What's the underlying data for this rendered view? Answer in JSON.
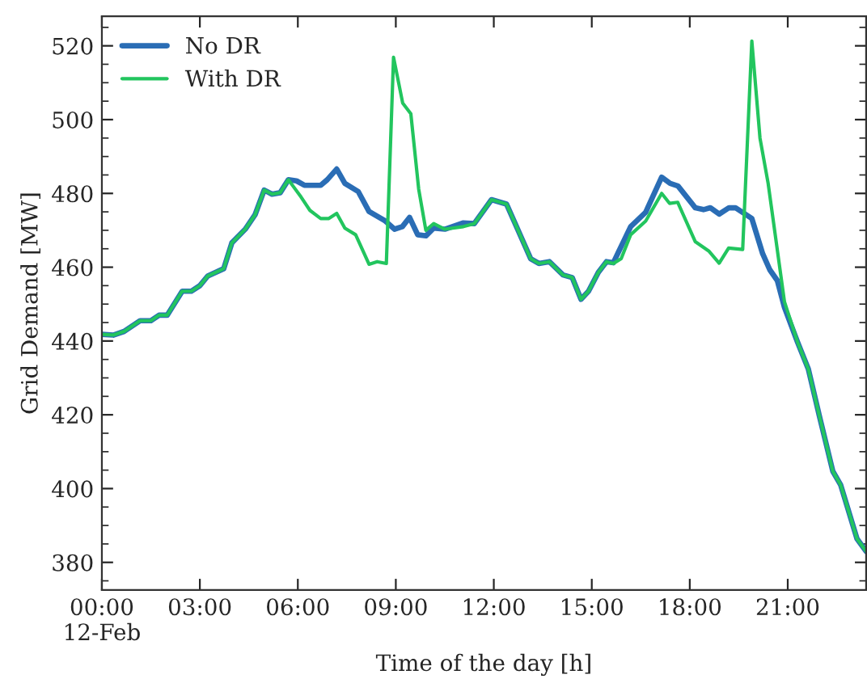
{
  "chart_data": {
    "type": "line",
    "xlabel": "Time of the day [h]",
    "ylabel": "Grid Demand [MW]",
    "xlim": [
      0,
      23.4
    ],
    "ylim": [
      372.5,
      528
    ],
    "xticks": [
      {
        "value": 0,
        "label": "00:00\n12-Feb"
      },
      {
        "value": 3,
        "label": "03:00"
      },
      {
        "value": 6,
        "label": "06:00"
      },
      {
        "value": 9,
        "label": "09:00"
      },
      {
        "value": 12,
        "label": "12:00"
      },
      {
        "value": 15,
        "label": "15:00"
      },
      {
        "value": 18,
        "label": "18:00"
      },
      {
        "value": 21,
        "label": "21:00"
      }
    ],
    "yticks": [
      380,
      400,
      420,
      440,
      460,
      480,
      500,
      520
    ],
    "grid": false,
    "legend": "top left",
    "marker": "none",
    "line_style": "solid",
    "series": [
      {
        "name": "No DR",
        "color": "#2a6db5",
        "x": [
          0,
          0.35,
          0.68,
          1.17,
          1.5,
          1.75,
          2.0,
          2.46,
          2.74,
          3.0,
          3.24,
          3.73,
          3.98,
          4.39,
          4.69,
          4.97,
          5.21,
          5.46,
          5.71,
          5.96,
          6.2,
          6.7,
          6.9,
          7.19,
          7.44,
          7.85,
          8.18,
          8.68,
          8.96,
          9.2,
          9.42,
          9.67,
          9.92,
          10.16,
          10.5,
          11.07,
          11.4,
          11.93,
          12.39,
          13.13,
          13.38,
          13.7,
          14.12,
          14.4,
          14.67,
          14.9,
          15.2,
          15.45,
          15.66,
          16.19,
          16.65,
          17.14,
          17.4,
          17.64,
          18.17,
          18.42,
          18.63,
          18.9,
          19.2,
          19.4,
          19.9,
          20.23,
          20.45,
          20.68,
          20.9,
          21.3,
          21.63,
          21.96,
          22.38,
          22.62,
          23.12,
          23.4
        ],
        "values": [
          441.8,
          441.6,
          442.6,
          445.5,
          445.5,
          447,
          447,
          453.5,
          453.5,
          455,
          457.6,
          459.6,
          466.6,
          470.3,
          474.2,
          480.9,
          479.8,
          480.2,
          483.7,
          483.4,
          482.2,
          482.2,
          483.7,
          486.6,
          482.7,
          480.5,
          475.1,
          472.5,
          470.3,
          471,
          473.5,
          468.8,
          468.5,
          470.6,
          470.3,
          472,
          471.8,
          478.3,
          477.1,
          462.3,
          461,
          461.5,
          457.9,
          457.2,
          451.3,
          453.5,
          458.6,
          461.5,
          461.2,
          471,
          474.9,
          484.4,
          482.7,
          482,
          476.1,
          475.6,
          476.1,
          474.4,
          476.1,
          476.1,
          473.2,
          463.7,
          459.3,
          456.4,
          449.1,
          439.7,
          432.4,
          420,
          404.7,
          401,
          386.4,
          383
        ]
      },
      {
        "name": "With DR",
        "color": "#22c55e",
        "x": [
          0,
          0.35,
          0.68,
          1.17,
          1.5,
          1.75,
          2.0,
          2.46,
          2.74,
          3.0,
          3.24,
          3.73,
          3.98,
          4.39,
          4.69,
          4.97,
          5.21,
          5.46,
          5.71,
          6.1,
          6.37,
          6.7,
          6.95,
          7.19,
          7.44,
          7.77,
          8.18,
          8.43,
          8.71,
          8.93,
          9.21,
          9.46,
          9.7,
          9.92,
          10.16,
          10.5,
          11.07,
          11.4,
          11.93,
          12.39,
          13.13,
          13.38,
          13.7,
          14.12,
          14.4,
          14.67,
          14.9,
          15.2,
          15.45,
          15.66,
          15.9,
          16.19,
          16.65,
          17.14,
          17.38,
          17.63,
          18.17,
          18.58,
          18.9,
          19.19,
          19.62,
          19.9,
          20.15,
          20.4,
          20.9,
          21.3,
          21.63,
          21.96,
          22.38,
          22.62,
          23.12,
          23.4
        ],
        "values": [
          441.8,
          441.6,
          442.6,
          445.5,
          445.5,
          447,
          447,
          453.5,
          453.5,
          455,
          457.6,
          459.6,
          466.6,
          470.3,
          474.2,
          480.9,
          479.8,
          480.2,
          483.7,
          479,
          475.4,
          473.2,
          473.2,
          474.6,
          470.6,
          468.8,
          460.8,
          461.5,
          461,
          516.9,
          504.5,
          501.6,
          481.2,
          470,
          471.8,
          470.3,
          471,
          471.8,
          478.3,
          477.1,
          462.3,
          461,
          461.5,
          457.9,
          457.2,
          451.3,
          453.5,
          458.6,
          461.5,
          461,
          462.3,
          468.8,
          472.5,
          480,
          477.3,
          477.6,
          466.9,
          464.4,
          461.1,
          465.2,
          464.8,
          521.3,
          495,
          482.7,
          450.6,
          439.7,
          432.4,
          420,
          404.7,
          401,
          386.4,
          383
        ]
      }
    ]
  }
}
